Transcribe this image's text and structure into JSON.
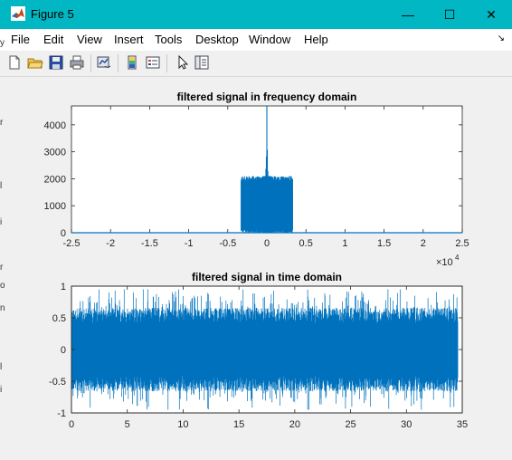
{
  "window": {
    "title": "Figure 5",
    "controls": {
      "minimize": "—",
      "maximize": "☐",
      "close": "✕"
    }
  },
  "menu": {
    "items": [
      "File",
      "Edit",
      "View",
      "Insert",
      "Tools",
      "Desktop",
      "Window",
      "Help"
    ],
    "overflow_arrow": "↘"
  },
  "toolbar": {
    "icons": [
      "new-figure-icon",
      "open-file-icon",
      "save-icon",
      "print-icon",
      "link-plot-icon",
      "insert-colorbar-icon",
      "insert-legend-icon",
      "edit-plot-pointer-icon",
      "property-inspector-icon"
    ]
  },
  "chart_data": [
    {
      "type": "line",
      "title": "filtered signal in frequency domain",
      "xlabel": "",
      "ylabel": "",
      "xlim": [
        -2.5,
        2.5
      ],
      "ylim": [
        0,
        4700
      ],
      "x_ticks": [
        "-2.5",
        "-2",
        "-1.5",
        "-1",
        "-0.5",
        "0",
        "0.5",
        "1",
        "1.5",
        "2",
        "2.5"
      ],
      "y_ticks": [
        "0",
        "1000",
        "2000",
        "3000",
        "4000"
      ],
      "x_exponent": {
        "base": "×10",
        "power": "4"
      },
      "series_color": "#0072bd",
      "band_x": [
        -0.33,
        0.33
      ],
      "band_level": [
        1600,
        2100
      ],
      "peak": {
        "x": 0,
        "y": 4700
      }
    },
    {
      "type": "line",
      "title": "filtered signal in time domain",
      "xlabel": "",
      "ylabel": "",
      "xlim": [
        0,
        35
      ],
      "ylim": [
        -1,
        1
      ],
      "x_ticks": [
        "0",
        "5",
        "10",
        "15",
        "20",
        "25",
        "30",
        "35"
      ],
      "y_ticks": [
        "-1",
        "-0.5",
        "0",
        "0.5",
        "1"
      ],
      "series_color": "#0072bd",
      "signal_x_range": [
        0,
        34.6
      ],
      "amplitude_typical": 0.55,
      "amplitude_peak": 0.95
    }
  ],
  "left_edge_fragments": [
    "y",
    "r",
    "l",
    "i",
    "r",
    "o",
    "n",
    "l",
    "i"
  ]
}
